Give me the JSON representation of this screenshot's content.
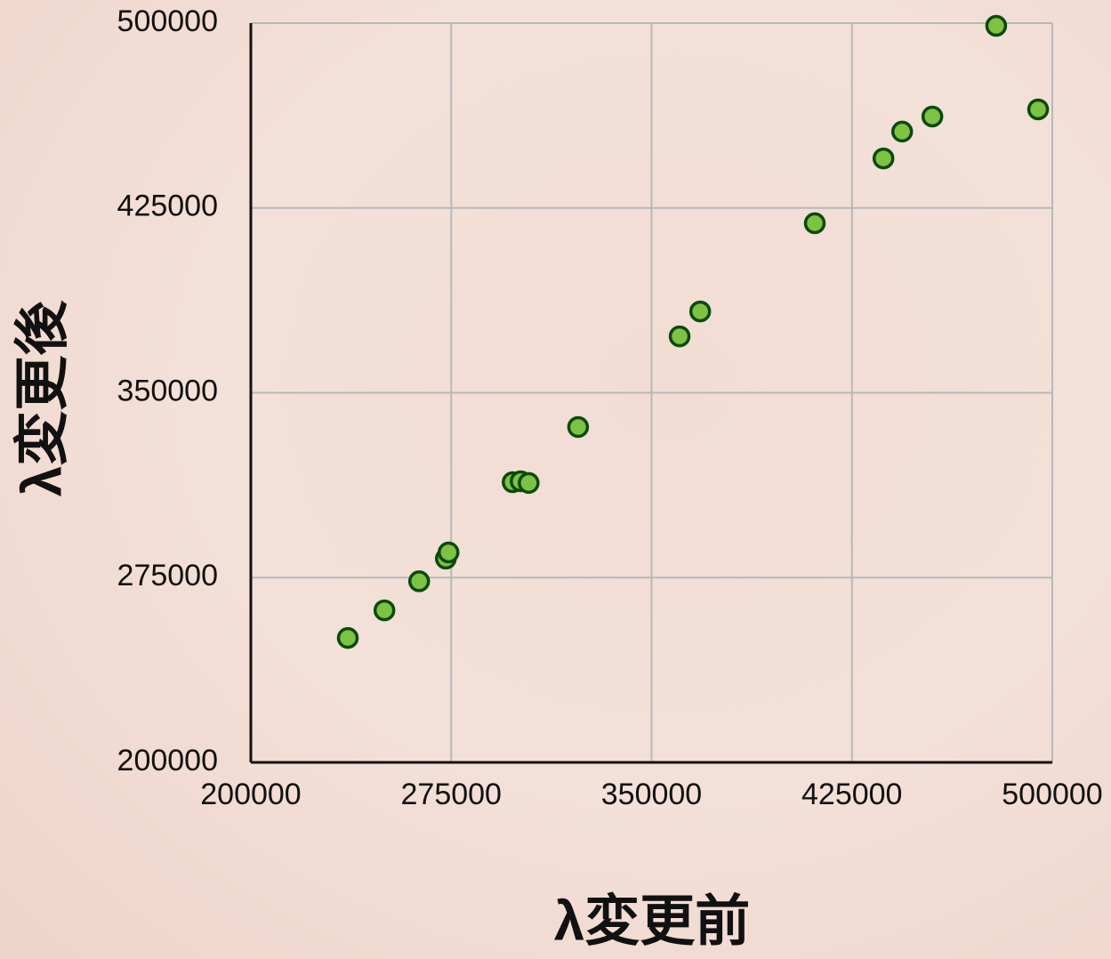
{
  "chart_data": {
    "type": "scatter",
    "x_label": "λ変更前",
    "y_label": "λ変更後",
    "series": [
      {
        "name": null,
        "color": "#7dc242",
        "x": [
          236300,
          250000,
          263000,
          273000,
          274000,
          298000,
          301000,
          304000,
          322500,
          360500,
          368200,
          411100,
          436800,
          443800,
          455100,
          479000,
          494700
        ],
        "values": [
          250500,
          261700,
          273500,
          282700,
          285200,
          313700,
          314100,
          313400,
          336100,
          372900,
          383000,
          418800,
          445100,
          456000,
          462100,
          498900,
          465000
        ]
      }
    ],
    "xlim": [
      200000,
      500000
    ],
    "xticks": [
      200000,
      275000,
      350000,
      425000,
      500000
    ],
    "ylim": [
      200000,
      500000
    ],
    "yticks": [
      200000,
      275000,
      350000,
      425000,
      500000
    ],
    "grid": true
  }
}
